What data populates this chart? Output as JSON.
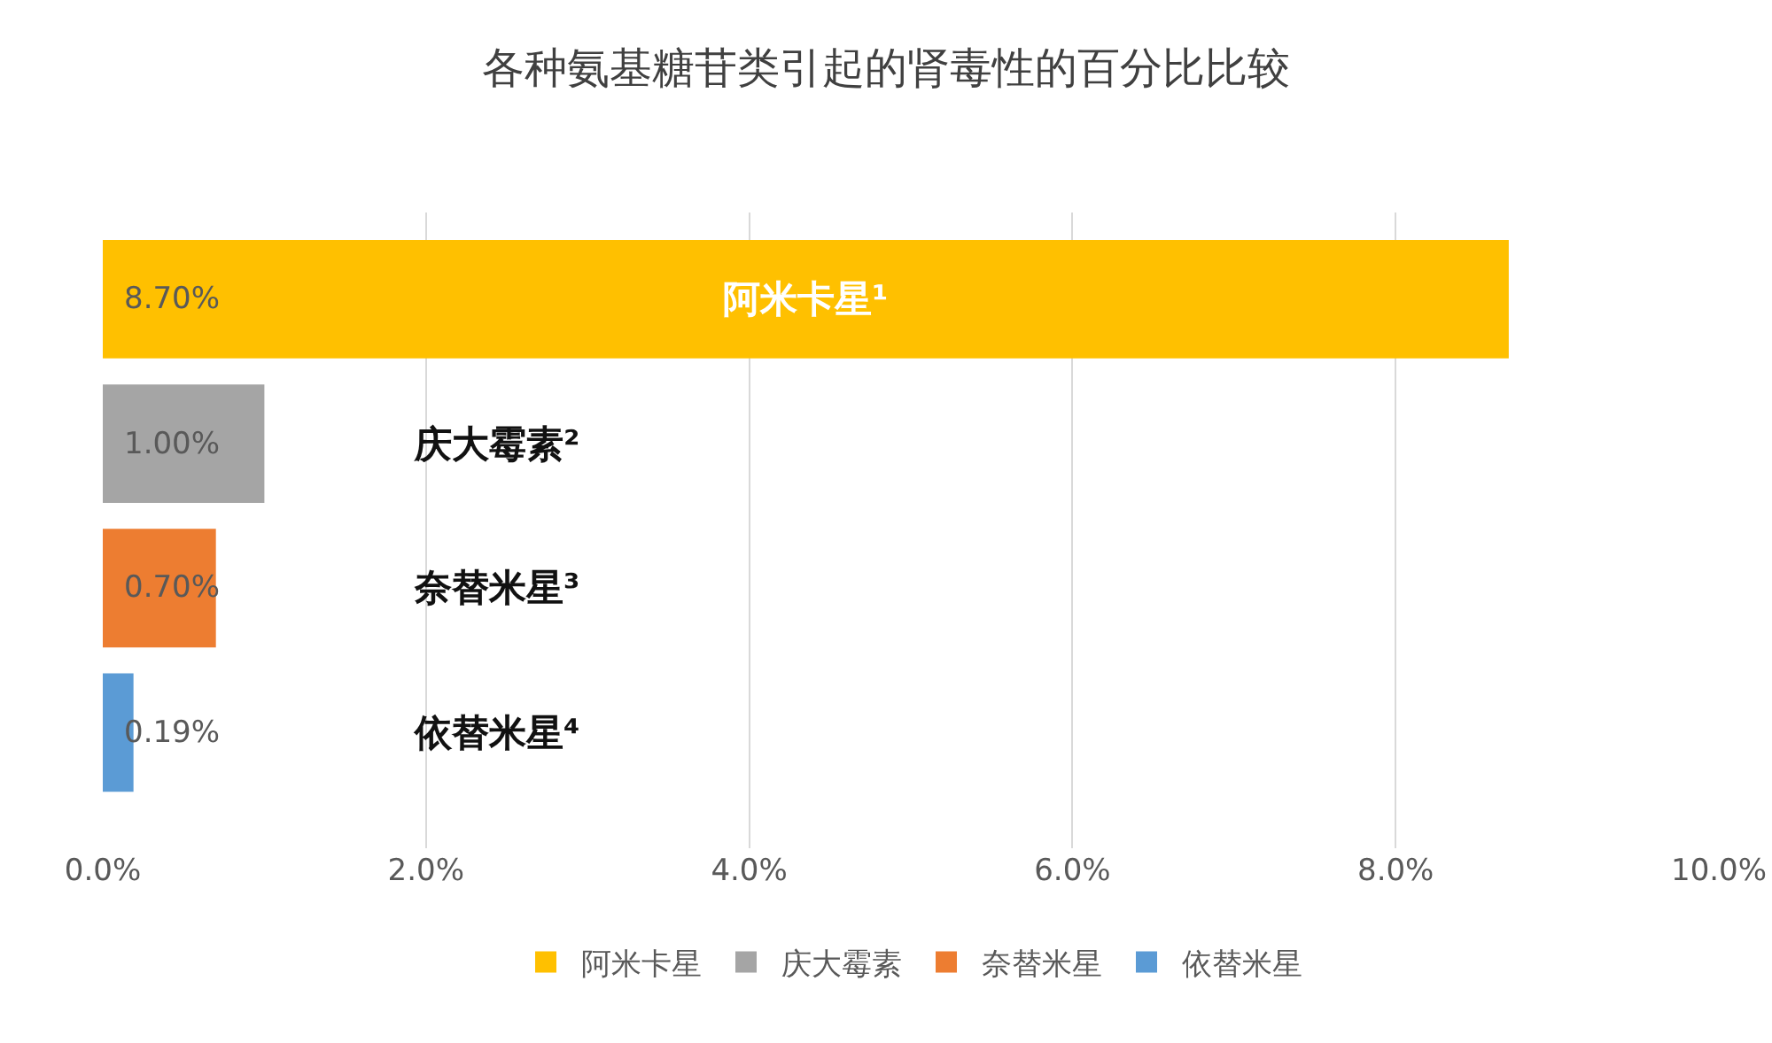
{
  "chart_data": {
    "type": "bar",
    "orientation": "horizontal",
    "title": "各种氨基糖苷类引起的肾毒性的百分比比较",
    "categories": [
      "阿米卡星¹",
      "庆大霉素²",
      "奈替米星³",
      "依替米星⁴"
    ],
    "series": [
      {
        "name": "阿米卡星",
        "color": "#ffc000",
        "values": [
          8.7,
          null,
          null,
          null
        ],
        "value_labels": [
          "8.70%",
          null,
          null,
          null
        ]
      },
      {
        "name": "庆大霉素",
        "color": "#a5a5a5",
        "values": [
          null,
          1.0,
          null,
          null
        ],
        "value_labels": [
          null,
          "1.00%",
          null,
          null
        ]
      },
      {
        "name": "奈替米星",
        "color": "#ed7d31",
        "values": [
          null,
          null,
          0.7,
          null
        ],
        "value_labels": [
          null,
          null,
          "0.70%",
          null
        ]
      },
      {
        "name": "依替米星",
        "color": "#5b9bd5",
        "values": [
          null,
          null,
          null,
          0.19
        ],
        "value_labels": [
          null,
          null,
          null,
          "0.19%"
        ]
      }
    ],
    "xlim": [
      0,
      10
    ],
    "xticks": [
      {
        "value": 0,
        "label": "0.0%"
      },
      {
        "value": 2,
        "label": "2.0%"
      },
      {
        "value": 4,
        "label": "4.0%"
      },
      {
        "value": 6,
        "label": "6.0%"
      },
      {
        "value": 8,
        "label": "8.0%"
      },
      {
        "value": 10,
        "label": "10.0%"
      }
    ],
    "grid": "x",
    "legend": "bottom",
    "tick_labels": "x"
  }
}
